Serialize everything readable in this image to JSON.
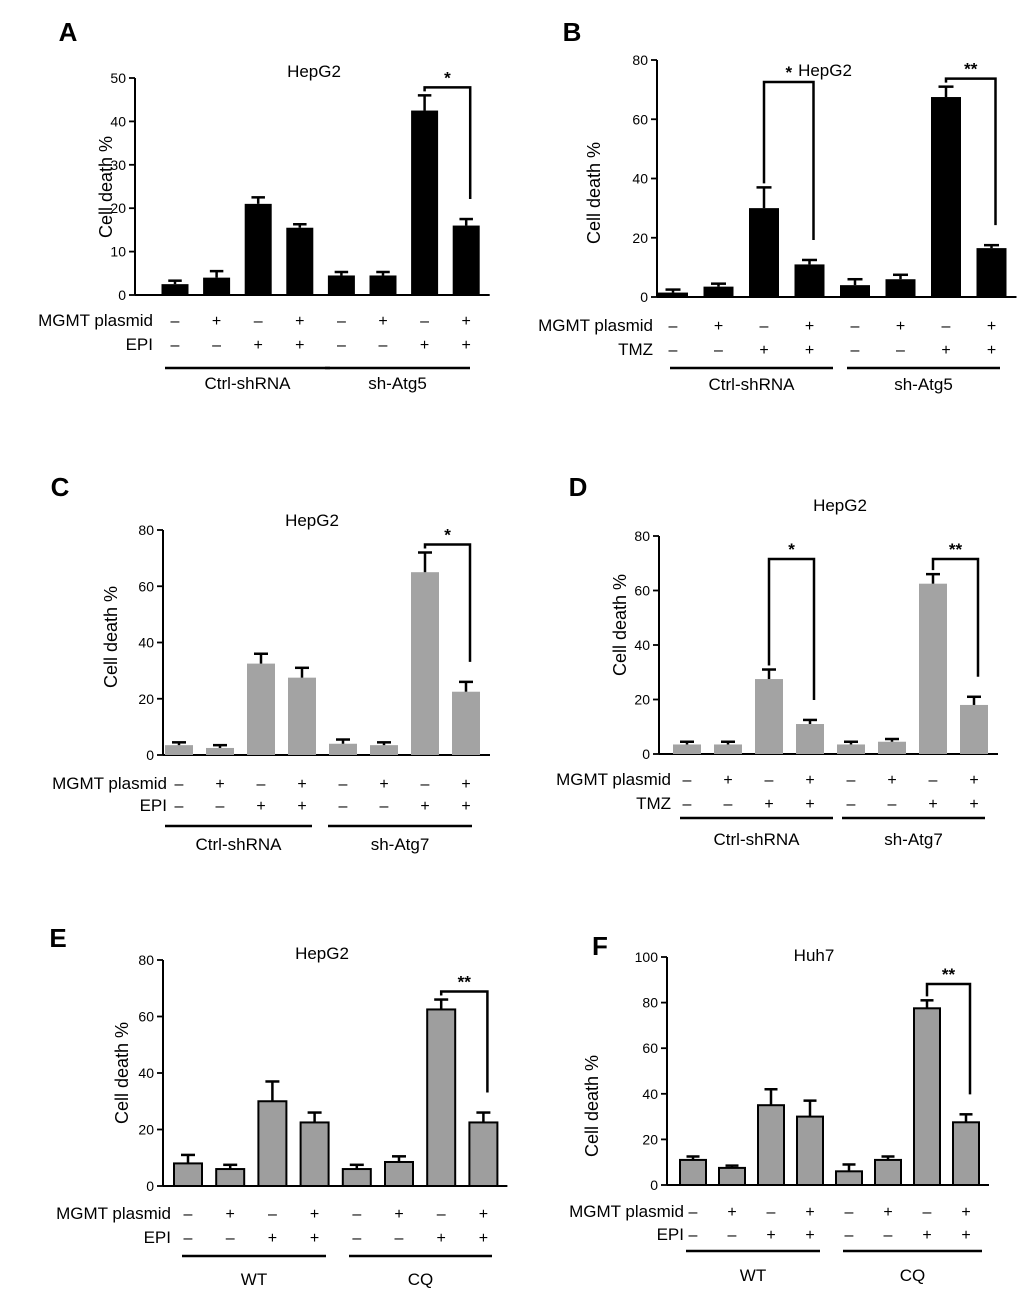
{
  "colors": {
    "black_bar": "#000000",
    "gray_bar": "#a3a3a3",
    "outlined_gray_bar": "#9e9e9e"
  },
  "chart_data": [
    {
      "panel": "A",
      "type": "bar",
      "title": "HepG2",
      "ylabel": "Cell death %",
      "ylim": [
        0,
        50
      ],
      "yticks": [
        "0",
        "10",
        "20",
        "30",
        "40",
        "50"
      ],
      "values": [
        2.5,
        4,
        21,
        15.5,
        4.5,
        4.5,
        42.5,
        16
      ],
      "errors": [
        0.8,
        1.5,
        1.5,
        0.8,
        0.8,
        0.8,
        3.5,
        1.5
      ],
      "rows": [
        {
          "label": "MGMT plasmid",
          "signs": [
            "–",
            "+",
            "–",
            "+",
            "–",
            "+",
            "–",
            "+"
          ]
        },
        {
          "label": "EPI",
          "signs": [
            "–",
            "–",
            "+",
            "+",
            "–",
            "–",
            "+",
            "+"
          ]
        }
      ],
      "groups": [
        "Ctrl-shRNA",
        "sh-Atg5"
      ],
      "significance": [
        {
          "from": 6,
          "to": 7,
          "label": "*"
        }
      ]
    },
    {
      "panel": "B",
      "type": "bar",
      "title": "HepG2",
      "ylabel": "Cell death %",
      "ylim": [
        0,
        80
      ],
      "yticks": [
        "0",
        "20",
        "40",
        "60",
        "80"
      ],
      "values": [
        1.5,
        3.5,
        30,
        11,
        4,
        6,
        67.5,
        16.5
      ],
      "errors": [
        1,
        1,
        7,
        1.5,
        2,
        1.5,
        3.5,
        1
      ],
      "rows": [
        {
          "label": "MGMT plasmid",
          "signs": [
            "–",
            "+",
            "–",
            "+",
            "–",
            "+",
            "–",
            "+"
          ]
        },
        {
          "label": "TMZ",
          "signs": [
            "–",
            "–",
            "+",
            "+",
            "–",
            "–",
            "+",
            "+"
          ]
        }
      ],
      "groups": [
        "Ctrl-shRNA",
        "sh-Atg5"
      ],
      "significance": [
        {
          "from": 2,
          "to": 3,
          "label": "*"
        },
        {
          "from": 6,
          "to": 7,
          "label": "**"
        }
      ]
    },
    {
      "panel": "C",
      "type": "bar",
      "title": "HepG2",
      "ylabel": "Cell death %",
      "ylim": [
        0,
        80
      ],
      "yticks": [
        "0",
        "20",
        "40",
        "60",
        "80"
      ],
      "values": [
        3.5,
        2.5,
        32.5,
        27.5,
        4,
        3.5,
        65,
        22.5
      ],
      "errors": [
        1,
        1,
        3.5,
        3.5,
        1.5,
        1,
        7,
        3.5
      ],
      "rows": [
        {
          "label": "MGMT plasmid",
          "signs": [
            "–",
            "+",
            "–",
            "+",
            "–",
            "+",
            "–",
            "+"
          ]
        },
        {
          "label": "EPI",
          "signs": [
            "–",
            "–",
            "+",
            "+",
            "–",
            "–",
            "+",
            "+"
          ]
        }
      ],
      "groups": [
        "Ctrl-shRNA",
        "sh-Atg7"
      ],
      "significance": [
        {
          "from": 6,
          "to": 7,
          "label": "*"
        }
      ]
    },
    {
      "panel": "D",
      "type": "bar",
      "title": "HepG2",
      "ylabel": "Cell death %",
      "ylim": [
        0,
        80
      ],
      "yticks": [
        "0",
        "20",
        "40",
        "60",
        "80"
      ],
      "values": [
        3.5,
        3.5,
        27.5,
        11,
        3.5,
        4.5,
        62.5,
        18
      ],
      "errors": [
        1,
        1,
        3.5,
        1.5,
        1,
        1,
        3.5,
        3
      ],
      "rows": [
        {
          "label": "MGMT plasmid",
          "signs": [
            "–",
            "+",
            "–",
            "+",
            "–",
            "+",
            "–",
            "+"
          ]
        },
        {
          "label": "TMZ",
          "signs": [
            "–",
            "–",
            "+",
            "+",
            "–",
            "–",
            "+",
            "+"
          ]
        }
      ],
      "groups": [
        "Ctrl-shRNA",
        "sh-Atg7"
      ],
      "significance": [
        {
          "from": 2,
          "to": 3,
          "label": "*"
        },
        {
          "from": 6,
          "to": 7,
          "label": "**"
        }
      ]
    },
    {
      "panel": "E",
      "type": "bar",
      "title": "HepG2",
      "ylabel": "Cell death %",
      "ylim": [
        0,
        80
      ],
      "yticks": [
        "0",
        "20",
        "40",
        "60",
        "80"
      ],
      "values": [
        8,
        6,
        30,
        22.5,
        6,
        8.5,
        62.5,
        22.5
      ],
      "errors": [
        3,
        1.5,
        7,
        3.5,
        1.5,
        2,
        3.5,
        3.5
      ],
      "rows": [
        {
          "label": "MGMT plasmid",
          "signs": [
            "–",
            "+",
            "–",
            "+",
            "–",
            "+",
            "–",
            "+"
          ]
        },
        {
          "label": "EPI",
          "signs": [
            "–",
            "–",
            "+",
            "+",
            "–",
            "–",
            "+",
            "+"
          ]
        }
      ],
      "groups": [
        "WT",
        "CQ"
      ],
      "significance": [
        {
          "from": 6,
          "to": 7,
          "label": "**"
        }
      ]
    },
    {
      "panel": "F",
      "type": "bar",
      "title": "Huh7",
      "ylabel": "Cell death %",
      "ylim": [
        0,
        100
      ],
      "yticks": [
        "0",
        "20",
        "40",
        "60",
        "80",
        "100"
      ],
      "values": [
        11,
        7.5,
        35,
        30,
        6,
        11,
        77.5,
        27.5
      ],
      "errors": [
        1.5,
        1,
        7,
        7,
        3,
        1.5,
        3.5,
        3.5
      ],
      "rows": [
        {
          "label": "MGMT plasmid",
          "signs": [
            "–",
            "+",
            "–",
            "+",
            "–",
            "+",
            "–",
            "+"
          ]
        },
        {
          "label": "EPI",
          "signs": [
            "–",
            "–",
            "+",
            "+",
            "–",
            "–",
            "+",
            "+"
          ]
        }
      ],
      "groups": [
        "WT",
        "CQ"
      ],
      "significance": [
        {
          "from": 6,
          "to": 7,
          "label": "**"
        }
      ]
    }
  ]
}
